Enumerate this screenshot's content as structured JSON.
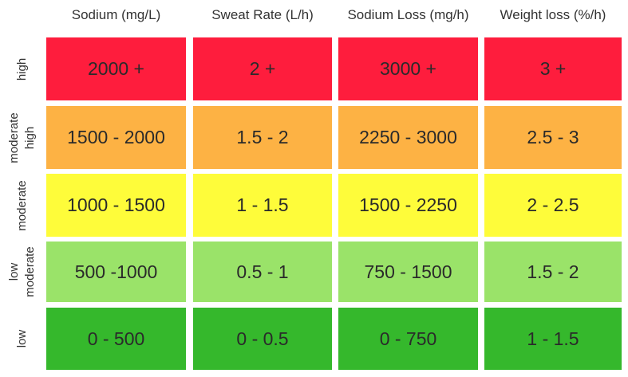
{
  "columns": [
    "Sodium (mg/L)",
    "Sweat Rate (L/h)",
    "Sodium Loss (mg/h)",
    "Weight loss (%/h)"
  ],
  "rows": [
    {
      "label_lines": [
        "high"
      ],
      "color": "#fe1d3d",
      "cells": [
        "2000 +",
        "2 +",
        "3000 +",
        "3 +"
      ]
    },
    {
      "label_lines": [
        "moderate",
        "high"
      ],
      "color": "#fdb244",
      "cells": [
        "1500 - 2000",
        "1.5 - 2",
        "2250 - 3000",
        "2.5 - 3"
      ]
    },
    {
      "label_lines": [
        "moderate"
      ],
      "color": "#fefc3a",
      "cells": [
        "1000 - 1500",
        "1 - 1.5",
        "1500 - 2250",
        "2 - 2.5"
      ]
    },
    {
      "label_lines": [
        "low",
        "moderate"
      ],
      "color": "#9ae369",
      "cells": [
        "500 -1000",
        "0.5 - 1",
        "750 - 1500",
        "1.5 - 2"
      ]
    },
    {
      "label_lines": [
        "low"
      ],
      "color": "#35b82c",
      "cells": [
        "0 - 500",
        "0 - 0.5",
        "0 - 750",
        "1 - 1.5"
      ]
    }
  ]
}
